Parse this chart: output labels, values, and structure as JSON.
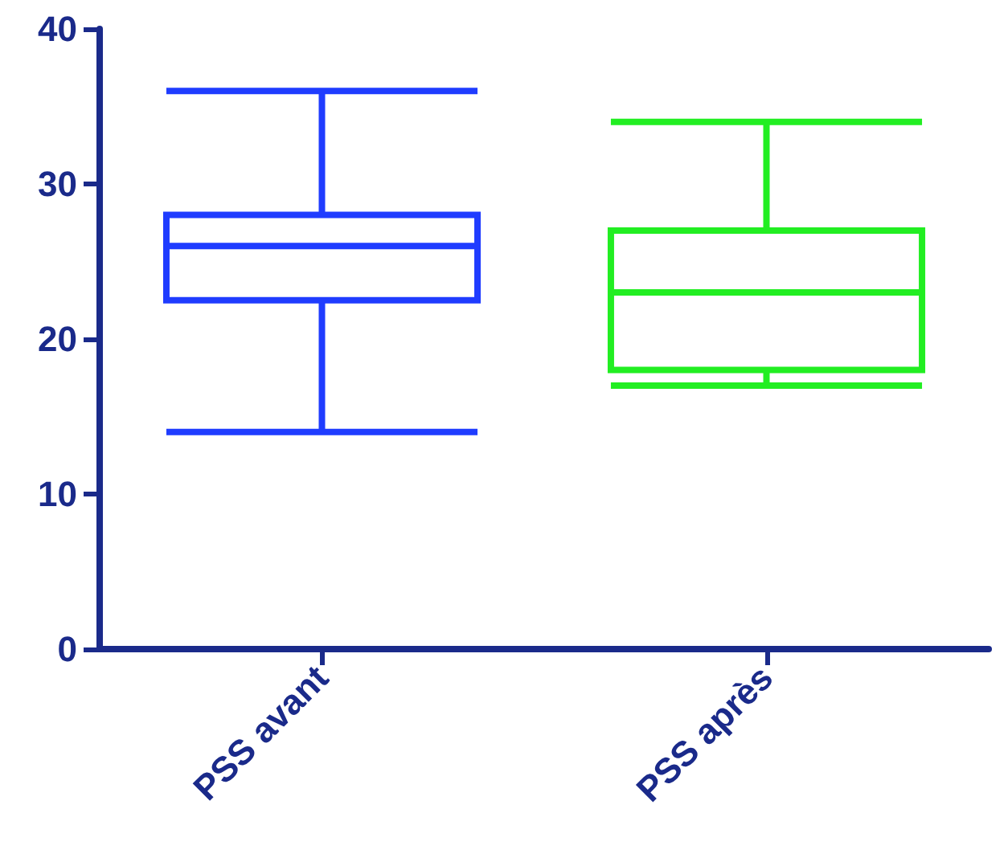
{
  "chart_data": {
    "type": "box",
    "categories": [
      "PSS avant",
      "PSS après"
    ],
    "boxes": [
      {
        "low": 14,
        "q1": 22.5,
        "median": 26,
        "q3": 28,
        "high": 36
      },
      {
        "low": 17,
        "q1": 18,
        "median": 23,
        "q3": 27,
        "high": 34
      }
    ],
    "colors": [
      "#1f3cff",
      "#22ee22"
    ],
    "ylim": [
      0,
      40
    ],
    "yticks": [
      0,
      10,
      20,
      30,
      40
    ],
    "grid": false
  }
}
